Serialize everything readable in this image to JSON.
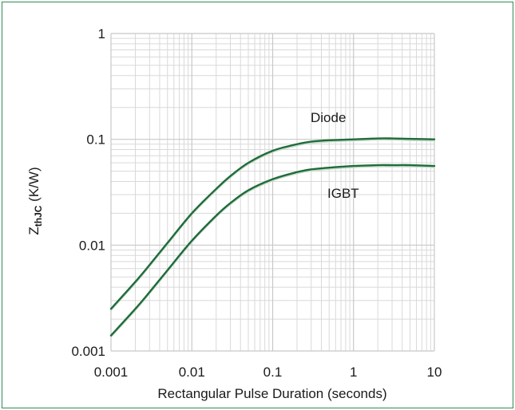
{
  "colors": {
    "frame": "#2e8b57",
    "curve": "#1f6b3a",
    "grid": "#d9d9d9"
  },
  "chart_data": {
    "type": "line",
    "xscale": "log",
    "yscale": "log",
    "xlim": [
      0.001,
      10
    ],
    "ylim": [
      0.001,
      1
    ],
    "xlabel": "Rectangular Pulse Duration (seconds)",
    "ylabel": {
      "main": "Z",
      "sub": "thJC",
      "unit": " (K/W)"
    },
    "x_ticks": [
      "0.001",
      "0.01",
      "0.1",
      "1",
      "10"
    ],
    "y_ticks": [
      "0.001",
      "0.01",
      "0.1",
      "1"
    ],
    "grid": true,
    "series": [
      {
        "name": "Diode",
        "x": [
          0.001,
          0.002,
          0.003,
          0.005,
          0.01,
          0.02,
          0.03,
          0.05,
          0.1,
          0.2,
          0.3,
          0.5,
          1,
          2,
          3,
          5,
          10
        ],
        "y": [
          0.0025,
          0.0045,
          0.0065,
          0.0105,
          0.02,
          0.034,
          0.045,
          0.06,
          0.078,
          0.09,
          0.095,
          0.098,
          0.1,
          0.102,
          0.102,
          0.101,
          0.1
        ]
      },
      {
        "name": "IGBT",
        "x": [
          0.001,
          0.002,
          0.003,
          0.005,
          0.01,
          0.02,
          0.03,
          0.05,
          0.1,
          0.2,
          0.3,
          0.5,
          1,
          2,
          3,
          5,
          10
        ],
        "y": [
          0.0014,
          0.0025,
          0.0036,
          0.0058,
          0.011,
          0.019,
          0.025,
          0.033,
          0.042,
          0.049,
          0.052,
          0.054,
          0.056,
          0.057,
          0.057,
          0.057,
          0.056
        ]
      }
    ]
  }
}
